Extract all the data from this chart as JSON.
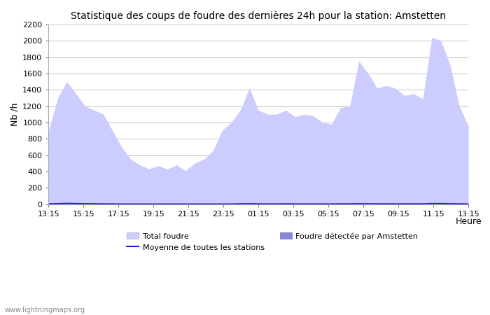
{
  "title": "Statistique des coups de foudre des dernières 24h pour la station: Amstetten",
  "ylabel": "Nb /h",
  "xlabel": "Heure",
  "watermark": "www.lightningmaps.org",
  "ylim": [
    0,
    2200
  ],
  "yticks": [
    0,
    200,
    400,
    600,
    800,
    1000,
    1200,
    1400,
    1600,
    1800,
    2000,
    2200
  ],
  "xtick_labels": [
    "13:15",
    "15:15",
    "17:15",
    "19:15",
    "21:15",
    "23:15",
    "01:15",
    "03:15",
    "05:15",
    "07:15",
    "09:15",
    "11:15",
    "13:15"
  ],
  "total_foudre_color": "#ccccff",
  "amstetten_color": "#8888dd",
  "mean_line_color": "#2222cc",
  "background_color": "#ffffff",
  "grid_color": "#cccccc",
  "title_fontsize": 10,
  "total_foudre": [
    900,
    1300,
    1500,
    1350,
    1200,
    1150,
    1100,
    900,
    700,
    550,
    480,
    430,
    470,
    430,
    480,
    410,
    500,
    550,
    650,
    900,
    1000,
    1150,
    1420,
    1150,
    1100,
    1100,
    1150,
    1070,
    1100,
    1080,
    1000,
    980,
    1180,
    1200,
    1750,
    1600,
    1420,
    1450,
    1420,
    1330,
    1350,
    1290,
    2040,
    2000,
    1700,
    1200,
    950
  ],
  "amstetten": [
    5,
    8,
    12,
    10,
    8,
    6,
    5,
    4,
    3,
    3,
    3,
    3,
    3,
    3,
    3,
    3,
    3,
    3,
    3,
    3,
    3,
    5,
    8,
    5,
    4,
    4,
    5,
    4,
    4,
    4,
    4,
    4,
    5,
    5,
    8,
    6,
    5,
    5,
    5,
    5,
    5,
    5,
    10,
    10,
    8,
    5,
    4
  ],
  "mean_line": [
    4,
    6,
    10,
    8,
    6,
    5,
    4,
    3,
    2,
    2,
    2,
    2,
    2,
    2,
    2,
    2,
    2,
    2,
    2,
    2,
    2,
    4,
    6,
    4,
    3,
    3,
    4,
    3,
    3,
    3,
    3,
    3,
    4,
    4,
    6,
    5,
    4,
    4,
    4,
    4,
    4,
    4,
    8,
    8,
    6,
    4,
    3
  ]
}
